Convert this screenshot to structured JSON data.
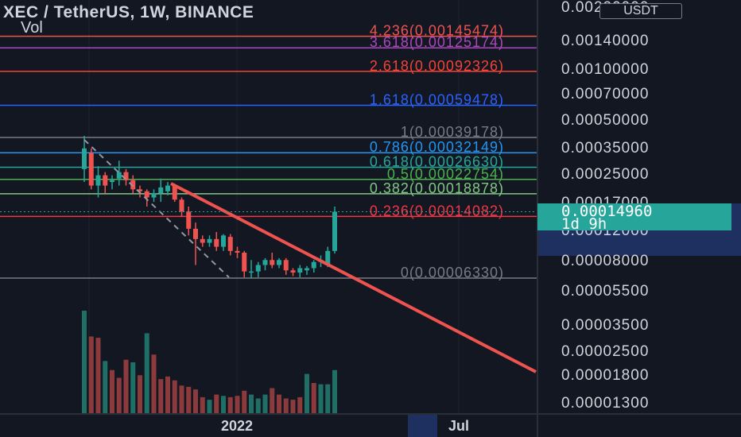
{
  "header": {
    "symbol_title": "XEC / TetherUS, 1W, BINANCE",
    "volume_label": "Vol",
    "currency_badge": "USDT"
  },
  "last_price": {
    "value": "0.00014960",
    "countdown": "1d 9h"
  },
  "colors": {
    "background": "#131722",
    "up": "#26a69a",
    "down": "#ef5350",
    "trendline": "#ef5350",
    "axis_text": "#d1d4dc"
  },
  "chart_data": {
    "type": "candlestick",
    "title": "XEC / TetherUS, 1W, BINANCE",
    "y_scale": "log",
    "y_axis_ticks": [
      "0.00220000",
      "0.00140000",
      "0.00100000",
      "0.00070000",
      "0.00050000",
      "0.00035000",
      "0.00025000",
      "0.00017000",
      "0.00012000",
      "0.00008000",
      "0.00005500",
      "0.00003500",
      "0.00002500",
      "0.00001800",
      "0.00001300"
    ],
    "x_axis_ticks": [
      "2022",
      "Jul"
    ],
    "fibonacci_levels": [
      {
        "label": "4.236(0.00145474)",
        "ratio": 4.236,
        "price": 0.00145474,
        "color": "#ef5350"
      },
      {
        "label": "3.618(0.00125174)",
        "ratio": 3.618,
        "price": 0.00125174,
        "color": "#ab47bc"
      },
      {
        "label": "2.618(0.00092326)",
        "ratio": 2.618,
        "price": 0.00092326,
        "color": "#f44336"
      },
      {
        "label": "1.618(0.00059478)",
        "ratio": 1.618,
        "price": 0.00059478,
        "color": "#2962ff"
      },
      {
        "label": "1(0.00039178)",
        "ratio": 1,
        "price": 0.00039178,
        "color": "#787b86"
      },
      {
        "label": "0.786(0.00032149)",
        "ratio": 0.786,
        "price": 0.00032149,
        "color": "#2196f3"
      },
      {
        "label": "0.618(0.00026630)",
        "ratio": 0.618,
        "price": 0.0002663,
        "color": "#26a69a"
      },
      {
        "label": "0.5(0.00022754)",
        "ratio": 0.5,
        "price": 0.00022754,
        "color": "#4caf50"
      },
      {
        "label": "0.382(0.00018878)",
        "ratio": 0.382,
        "price": 0.00018878,
        "color": "#81c784"
      },
      {
        "label": "0.236(0.00014082)",
        "ratio": 0.236,
        "price": 0.00014082,
        "color": "#f23645"
      },
      {
        "label": "0(0.00006330)",
        "ratio": 0,
        "price": 6.33e-05,
        "color": "#787b86"
      }
    ],
    "candles": [
      {
        "o": 0.00026,
        "h": 0.0004,
        "l": 0.00022,
        "c": 0.00034
      },
      {
        "o": 0.00032,
        "h": 0.00034,
        "l": 0.0002,
        "c": 0.00021
      },
      {
        "o": 0.00021,
        "h": 0.00027,
        "l": 0.00018,
        "c": 0.00024
      },
      {
        "o": 0.00024,
        "h": 0.00025,
        "l": 0.00019,
        "c": 0.00021
      },
      {
        "o": 0.00022,
        "h": 0.00024,
        "l": 0.0002,
        "c": 0.000225
      },
      {
        "o": 0.00023,
        "h": 0.00029,
        "l": 0.00021,
        "c": 0.00025
      },
      {
        "o": 0.00025,
        "h": 0.00026,
        "l": 0.00021,
        "c": 0.000225
      },
      {
        "o": 0.000225,
        "h": 0.00024,
        "l": 0.00019,
        "c": 0.0002
      },
      {
        "o": 0.0002,
        "h": 0.00021,
        "l": 0.00018,
        "c": 0.000195
      },
      {
        "o": 0.000195,
        "h": 0.0002,
        "l": 0.00016,
        "c": 0.00018
      },
      {
        "o": 0.00018,
        "h": 0.0002,
        "l": 0.00017,
        "c": 0.00019
      },
      {
        "o": 0.00019,
        "h": 0.00023,
        "l": 0.00017,
        "c": 0.000205
      },
      {
        "o": 0.000195,
        "h": 0.00022,
        "l": 0.000185,
        "c": 0.00021
      },
      {
        "o": 0.00021,
        "h": 0.000215,
        "l": 0.00017,
        "c": 0.000175
      },
      {
        "o": 0.000175,
        "h": 0.00018,
        "l": 0.00014,
        "c": 0.00015
      },
      {
        "o": 0.00015,
        "h": 0.00016,
        "l": 0.00011,
        "c": 0.00012
      },
      {
        "o": 0.00012,
        "h": 0.00013,
        "l": 7.5e-05,
        "c": 0.000105
      },
      {
        "o": 0.000105,
        "h": 0.00011,
        "l": 9.5e-05,
        "c": 0.0001
      },
      {
        "o": 0.0001,
        "h": 0.00011,
        "l": 9.5e-05,
        "c": 0.000105
      },
      {
        "o": 0.000105,
        "h": 0.000115,
        "l": 9e-05,
        "c": 9.5e-05
      },
      {
        "o": 9.5e-05,
        "h": 0.000112,
        "l": 9e-05,
        "c": 0.00011
      },
      {
        "o": 0.000108,
        "h": 0.000112,
        "l": 8.5e-05,
        "c": 9e-05
      },
      {
        "o": 9e-05,
        "h": 9.5e-05,
        "l": 8.2e-05,
        "c": 8.8e-05
      },
      {
        "o": 8.8e-05,
        "h": 9e-05,
        "l": 6.4e-05,
        "c": 6.9e-05
      },
      {
        "o": 6.8e-05,
        "h": 8e-05,
        "l": 6.3e-05,
        "c": 6.9e-05
      },
      {
        "o": 6.9e-05,
        "h": 7.8e-05,
        "l": 6.4e-05,
        "c": 7.5e-05
      },
      {
        "o": 7.5e-05,
        "h": 8.2e-05,
        "l": 7e-05,
        "c": 8e-05
      },
      {
        "o": 8e-05,
        "h": 8.8e-05,
        "l": 7.2e-05,
        "c": 7.5e-05
      },
      {
        "o": 7.5e-05,
        "h": 8.2e-05,
        "l": 7.2e-05,
        "c": 8e-05
      },
      {
        "o": 8e-05,
        "h": 8.2e-05,
        "l": 6.6e-05,
        "c": 7e-05
      },
      {
        "o": 7e-05,
        "h": 7.2e-05,
        "l": 6.5e-05,
        "c": 6.8e-05
      },
      {
        "o": 6.8e-05,
        "h": 7.5e-05,
        "l": 6.4e-05,
        "c": 7.2e-05
      },
      {
        "o": 7e-05,
        "h": 7.4e-05,
        "l": 6.6e-05,
        "c": 7.2e-05
      },
      {
        "o": 7.2e-05,
        "h": 8e-05,
        "l": 6.8e-05,
        "c": 7.8e-05
      },
      {
        "o": 7.8e-05,
        "h": 8.5e-05,
        "l": 7.3e-05,
        "c": 8e-05
      },
      {
        "o": 7.5e-05,
        "h": 9.5e-05,
        "l": 7.3e-05,
        "c": 9e-05
      },
      {
        "o": 9e-05,
        "h": 0.00016,
        "l": 8.7e-05,
        "c": 0.0001496
      }
    ],
    "volume": [
      {
        "v": 160,
        "up": true
      },
      {
        "v": 120,
        "up": false
      },
      {
        "v": 118,
        "up": false
      },
      {
        "v": 82,
        "up": true
      },
      {
        "v": 68,
        "up": false
      },
      {
        "v": 56,
        "up": false
      },
      {
        "v": 84,
        "up": false
      },
      {
        "v": 80,
        "up": true
      },
      {
        "v": 60,
        "up": false
      },
      {
        "v": 125,
        "up": true
      },
      {
        "v": 92,
        "up": false
      },
      {
        "v": 54,
        "up": false
      },
      {
        "v": 58,
        "up": false
      },
      {
        "v": 52,
        "up": false
      },
      {
        "v": 44,
        "up": false
      },
      {
        "v": 42,
        "up": false
      },
      {
        "v": 38,
        "up": false
      },
      {
        "v": 26,
        "up": false
      },
      {
        "v": 22,
        "up": true
      },
      {
        "v": 30,
        "up": false
      },
      {
        "v": 28,
        "up": true
      },
      {
        "v": 26,
        "up": false
      },
      {
        "v": 28,
        "up": false
      },
      {
        "v": 36,
        "up": false
      },
      {
        "v": 30,
        "up": true
      },
      {
        "v": 24,
        "up": true
      },
      {
        "v": 30,
        "up": true
      },
      {
        "v": 40,
        "up": false
      },
      {
        "v": 30,
        "up": false
      },
      {
        "v": 24,
        "up": false
      },
      {
        "v": 22,
        "up": false
      },
      {
        "v": 26,
        "up": false
      },
      {
        "v": 62,
        "up": true
      },
      {
        "v": 48,
        "up": false
      },
      {
        "v": 46,
        "up": true
      },
      {
        "v": 46,
        "up": true
      },
      {
        "v": 68,
        "up": true
      }
    ]
  }
}
